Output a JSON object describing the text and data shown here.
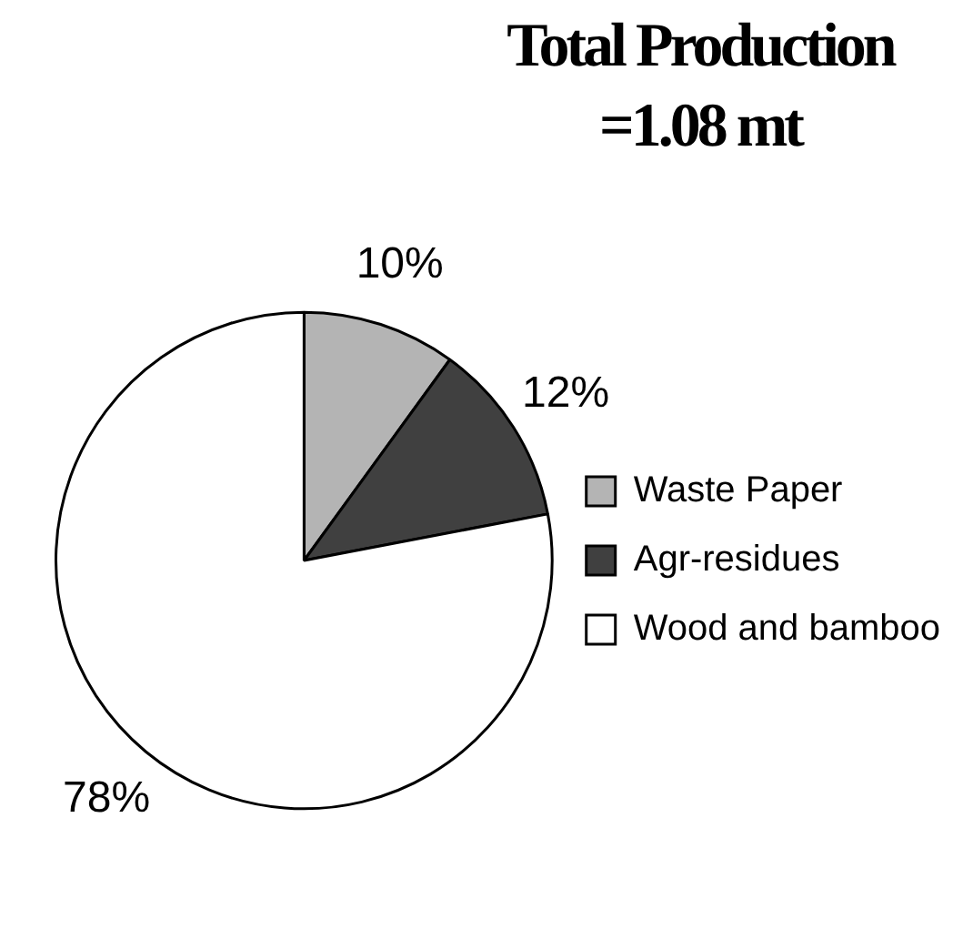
{
  "chart_data": {
    "type": "pie",
    "title": "Total Production\n=1.08 mt",
    "categories": [
      "Waste Paper",
      "Agr-residues",
      "Wood and bamboo"
    ],
    "values": [
      10,
      12,
      78
    ],
    "colors": [
      "#b4b4b4",
      "#404040",
      "#ffffff"
    ],
    "value_labels": [
      "10%",
      "12%",
      "78%"
    ],
    "legend": "right"
  }
}
